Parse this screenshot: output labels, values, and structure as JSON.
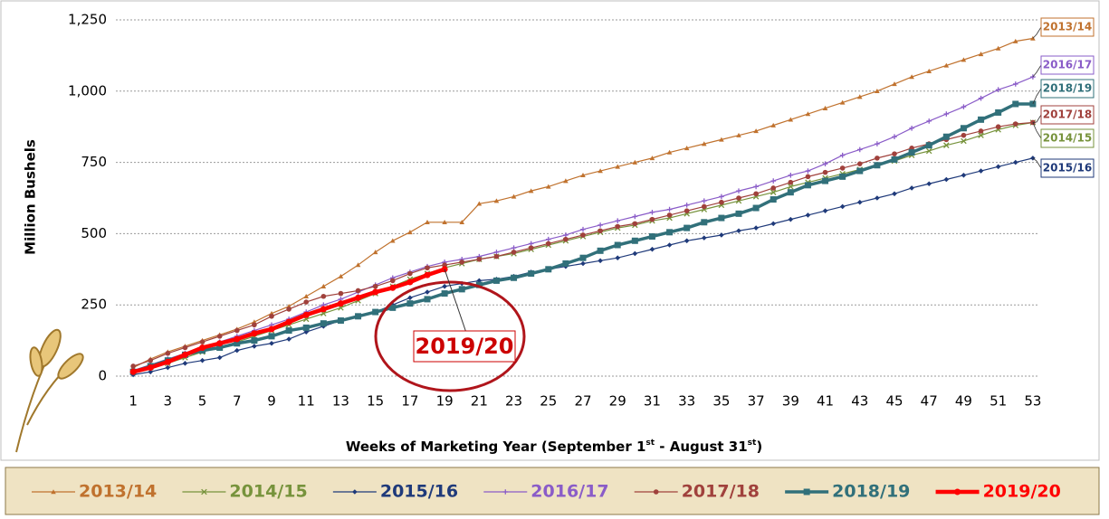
{
  "chart_data": {
    "type": "line",
    "y_label": "Million Bushels",
    "x_label_parts": [
      "Weeks of Marketing Year (September 1",
      "st",
      " - August 31",
      "st",
      ")"
    ],
    "annotation": "2019/20",
    "x": [
      1,
      2,
      3,
      4,
      5,
      6,
      7,
      8,
      9,
      10,
      11,
      12,
      13,
      14,
      15,
      16,
      17,
      18,
      19,
      20,
      21,
      22,
      23,
      24,
      25,
      26,
      27,
      28,
      29,
      30,
      31,
      32,
      33,
      34,
      35,
      36,
      37,
      38,
      39,
      40,
      41,
      42,
      43,
      44,
      45,
      46,
      47,
      48,
      49,
      50,
      51,
      52,
      53
    ],
    "xlim": [
      0,
      54
    ],
    "xticks": [
      1,
      3,
      5,
      7,
      9,
      11,
      13,
      15,
      17,
      19,
      21,
      23,
      25,
      27,
      29,
      31,
      33,
      35,
      37,
      39,
      41,
      43,
      45,
      47,
      49,
      51,
      53
    ],
    "ylim": [
      0,
      1250
    ],
    "yticks": [
      0,
      250,
      500,
      750,
      {
        "value": 1000,
        "label": "1,000"
      },
      {
        "value": 1250,
        "label": "1,250"
      }
    ],
    "grid": true,
    "series": [
      {
        "name": "2013/14",
        "color": "#c0722e",
        "marker": "triangle",
        "line_width": 1.2,
        "values": [
          30,
          60,
          85,
          105,
          125,
          145,
          165,
          190,
          220,
          245,
          280,
          315,
          350,
          390,
          435,
          475,
          505,
          540,
          540,
          540,
          605,
          615,
          630,
          650,
          665,
          685,
          705,
          720,
          735,
          750,
          765,
          785,
          800,
          815,
          830,
          845,
          860,
          880,
          900,
          920,
          940,
          960,
          980,
          1000,
          1025,
          1050,
          1070,
          1090,
          1110,
          1130,
          1150,
          1175,
          1185
        ]
      },
      {
        "name": "2014/15",
        "color": "#77933c",
        "marker": "x",
        "line_width": 1.2,
        "values": [
          15,
          30,
          45,
          65,
          85,
          100,
          120,
          140,
          160,
          180,
          200,
          220,
          240,
          265,
          290,
          315,
          340,
          360,
          380,
          395,
          410,
          420,
          430,
          445,
          460,
          475,
          490,
          505,
          520,
          530,
          545,
          555,
          570,
          585,
          600,
          615,
          630,
          645,
          665,
          680,
          695,
          710,
          725,
          740,
          755,
          775,
          790,
          810,
          825,
          845,
          865,
          880,
          890
        ]
      },
      {
        "name": "2015/16",
        "color": "#1f3a7a",
        "marker": "diamond",
        "line_width": 1.2,
        "values": [
          5,
          15,
          30,
          45,
          55,
          65,
          90,
          105,
          115,
          130,
          155,
          175,
          195,
          210,
          225,
          250,
          275,
          295,
          315,
          325,
          335,
          340,
          350,
          365,
          375,
          385,
          395,
          405,
          415,
          430,
          445,
          460,
          475,
          485,
          495,
          510,
          520,
          535,
          550,
          565,
          580,
          595,
          610,
          625,
          640,
          660,
          675,
          690,
          705,
          720,
          735,
          750,
          765
        ]
      },
      {
        "name": "2016/17",
        "color": "#8a5cc8",
        "marker": "plus",
        "line_width": 1.2,
        "values": [
          20,
          40,
          60,
          80,
          100,
          120,
          140,
          160,
          180,
          200,
          225,
          250,
          270,
          295,
          320,
          345,
          365,
          385,
          400,
          410,
          420,
          435,
          450,
          465,
          480,
          495,
          515,
          530,
          545,
          560,
          575,
          585,
          600,
          615,
          630,
          650,
          665,
          685,
          705,
          720,
          745,
          775,
          795,
          815,
          840,
          870,
          895,
          920,
          945,
          975,
          1005,
          1025,
          1050
        ]
      },
      {
        "name": "2017/18",
        "color": "#a0413c",
        "marker": "circle",
        "line_width": 1.2,
        "values": [
          35,
          55,
          80,
          100,
          120,
          140,
          160,
          180,
          210,
          235,
          260,
          280,
          290,
          300,
          315,
          335,
          360,
          380,
          390,
          400,
          410,
          420,
          435,
          450,
          465,
          480,
          495,
          510,
          525,
          535,
          550,
          565,
          580,
          595,
          610,
          625,
          640,
          660,
          680,
          700,
          715,
          730,
          745,
          765,
          780,
          800,
          815,
          830,
          845,
          860,
          875,
          885,
          890
        ]
      },
      {
        "name": "2018/19",
        "color": "#31707a",
        "marker": "square",
        "line_width": 3.5,
        "values": [
          15,
          35,
          55,
          75,
          90,
          100,
          115,
          125,
          140,
          160,
          170,
          185,
          195,
          210,
          225,
          240,
          255,
          270,
          290,
          305,
          320,
          335,
          345,
          360,
          375,
          395,
          415,
          440,
          460,
          475,
          490,
          505,
          520,
          540,
          555,
          570,
          590,
          620,
          645,
          670,
          685,
          700,
          720,
          740,
          760,
          785,
          810,
          840,
          870,
          900,
          925,
          955,
          955
        ]
      },
      {
        "name": "2019/20",
        "color": "#ff0000",
        "marker": "circle",
        "line_width": 4.5,
        "values": [
          15,
          30,
          50,
          75,
          100,
          115,
          130,
          150,
          165,
          190,
          215,
          235,
          255,
          275,
          295,
          310,
          330,
          355,
          375,
          null,
          null,
          null,
          null,
          null,
          null,
          null,
          null,
          null,
          null,
          null,
          null,
          null,
          null,
          null,
          null,
          null,
          null,
          null,
          null,
          null,
          null,
          null,
          null,
          null,
          null,
          null,
          null,
          null,
          null,
          null,
          null,
          null,
          null
        ]
      }
    ]
  }
}
